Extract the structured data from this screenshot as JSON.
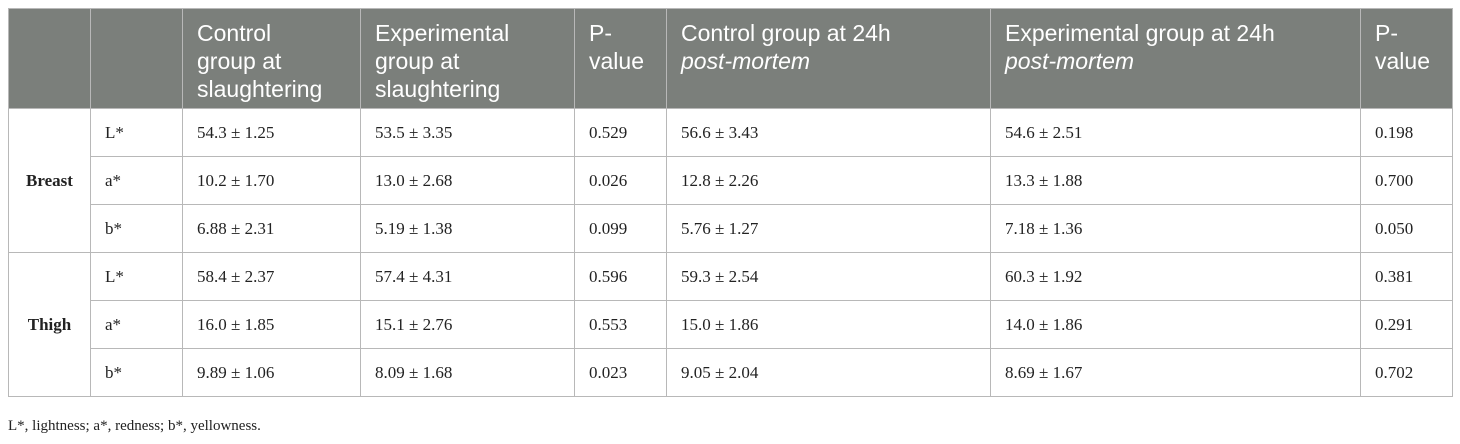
{
  "header": {
    "col1": "",
    "col2": "",
    "col3_line1": "Control",
    "col3_line2": "group at",
    "col3_line3": "slaughtering",
    "col4_line1": "Experimental",
    "col4_line2": "group at",
    "col4_line3": "slaughtering",
    "col5_line1": "P-",
    "col5_line2": "value",
    "col6_line1": "Control group at 24h",
    "col6_line2": "post-mortem",
    "col7_line1": "Experimental group at 24h",
    "col7_line2": "post-mortem",
    "col8_line1": "P-",
    "col8_line2": "value"
  },
  "groups": [
    {
      "name": "Breast",
      "rows": [
        {
          "param": "L*",
          "c_slaughter": "54.3 ± 1.25",
          "e_slaughter": "53.5 ± 3.35",
          "p1": "0.529",
          "c_24h": "56.6 ± 3.43",
          "e_24h": "54.6 ± 2.51",
          "p2": "0.198"
        },
        {
          "param": "a*",
          "c_slaughter": "10.2 ± 1.70",
          "e_slaughter": "13.0 ± 2.68",
          "p1": "0.026",
          "c_24h": "12.8 ± 2.26",
          "e_24h": "13.3 ± 1.88",
          "p2": "0.700"
        },
        {
          "param": "b*",
          "c_slaughter": "6.88 ± 2.31",
          "e_slaughter": "5.19 ± 1.38",
          "p1": "0.099",
          "c_24h": "5.76 ± 1.27",
          "e_24h": "7.18 ± 1.36",
          "p2": "0.050"
        }
      ]
    },
    {
      "name": "Thigh",
      "rows": [
        {
          "param": "L*",
          "c_slaughter": "58.4 ± 2.37",
          "e_slaughter": "57.4 ± 4.31",
          "p1": "0.596",
          "c_24h": "59.3 ± 2.54",
          "e_24h": "60.3 ± 1.92",
          "p2": "0.381"
        },
        {
          "param": "a*",
          "c_slaughter": "16.0 ± 1.85",
          "e_slaughter": "15.1 ± 2.76",
          "p1": "0.553",
          "c_24h": "15.0 ± 1.86",
          "e_24h": "14.0 ± 1.86",
          "p2": "0.291"
        },
        {
          "param": "b*",
          "c_slaughter": "9.89 ± 1.06",
          "e_slaughter": "8.09 ± 1.68",
          "p1": "0.023",
          "c_24h": "9.05 ± 2.04",
          "e_24h": "8.69 ± 1.67",
          "p2": "0.702"
        }
      ]
    }
  ],
  "footnote": "L*, lightness; a*, redness; b*, yellowness.",
  "colors": {
    "header_bg": "#7b7f7b",
    "header_text": "#ffffff",
    "border": "#b8b8b8"
  }
}
